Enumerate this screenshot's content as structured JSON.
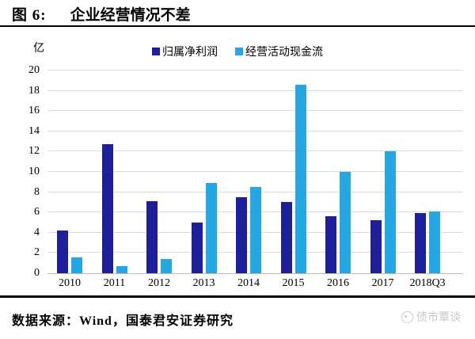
{
  "header": {
    "figure_label": "图 6:",
    "title": "企业经营情况不差"
  },
  "chart_data": {
    "type": "bar",
    "title": "企业经营情况不差",
    "unit": "亿",
    "categories": [
      "2010",
      "2011",
      "2012",
      "2013",
      "2014",
      "2015",
      "2016",
      "2017",
      "2018Q3"
    ],
    "series": [
      {
        "name": "归属净利润",
        "color": "#1F1F99",
        "values": [
          4.2,
          12.7,
          7.1,
          5.0,
          7.5,
          7.0,
          5.6,
          5.2,
          5.9
        ]
      },
      {
        "name": "经营活动现金流",
        "color": "#24A7E2",
        "values": [
          1.6,
          0.7,
          1.4,
          8.9,
          8.5,
          18.6,
          10.0,
          12.0,
          6.1
        ]
      }
    ],
    "ylim": [
      0,
      20
    ],
    "y_tick_step": 2,
    "grid": "horizontal",
    "legend_position": "top-center",
    "gridline_color": "#DCDCDC",
    "axis_line_color": "#BFBFBF"
  },
  "footer": {
    "source": "数据来源：Wind，国泰君安证券研究"
  },
  "watermark": {
    "text": "债市覃谈"
  }
}
